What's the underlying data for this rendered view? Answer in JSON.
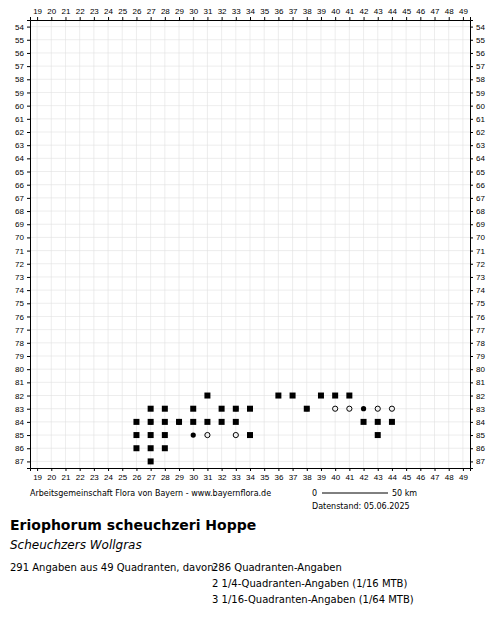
{
  "chart_data": {
    "type": "scatter",
    "title": "Eriophorum scheuchzeri Hoppe",
    "subtitle": "Scheuchzers Wollgras",
    "annotations": [
      "Arbeitsgemeinschaft Flora von Bayern - www.bayernflora.de",
      "0",
      "50 km",
      "Datenstand: 05.06.2025",
      "291 Angaben aus 49 Quadranten, davon:",
      "286 Quadranten-Angaben",
      "2 1/4-Quadranten-Angaben (1/16 MTB)",
      "3 1/16-Quadranten-Angaben (1/64 MTB)"
    ],
    "xlim": [
      18.5,
      49.5
    ],
    "ylim": [
      87.5,
      53.5
    ],
    "xticks": [
      19,
      20,
      21,
      22,
      23,
      24,
      25,
      26,
      27,
      28,
      29,
      30,
      31,
      32,
      33,
      34,
      35,
      36,
      37,
      38,
      39,
      40,
      41,
      42,
      43,
      44,
      45,
      46,
      47,
      48,
      49
    ],
    "yticks": [
      54,
      55,
      56,
      57,
      58,
      59,
      60,
      61,
      62,
      63,
      64,
      65,
      66,
      67,
      68,
      69,
      70,
      71,
      72,
      73,
      74,
      75,
      76,
      77,
      78,
      79,
      80,
      81,
      82,
      83,
      84,
      85,
      86,
      87
    ],
    "grid": true,
    "series": [
      {
        "marker": "square",
        "color": "#000000",
        "x": [
          26,
          26,
          27,
          27,
          27,
          27,
          28,
          28,
          28,
          26,
          27,
          28,
          29,
          30,
          30,
          31,
          31,
          32,
          32,
          33,
          33,
          34,
          34,
          36,
          37,
          38,
          39,
          40,
          41,
          42,
          43,
          43,
          44
        ],
        "values": [
          85,
          86,
          84,
          85,
          86,
          87,
          84,
          85,
          86,
          84,
          83,
          83,
          84,
          83,
          84,
          84,
          82,
          83,
          84,
          83,
          84,
          83,
          85,
          82,
          82,
          83,
          82,
          82,
          82,
          84,
          84,
          85,
          84
        ]
      },
      {
        "marker": "circle",
        "color": "#000000",
        "x": [
          27,
          30,
          33,
          38,
          42
        ],
        "values": [
          84,
          85,
          83,
          83,
          83
        ]
      },
      {
        "marker": "open_circle",
        "color": "#000000",
        "x": [
          29,
          31,
          33,
          40,
          41,
          43,
          44
        ],
        "values": [
          84,
          85,
          85,
          83,
          83,
          83,
          83
        ]
      }
    ]
  }
}
